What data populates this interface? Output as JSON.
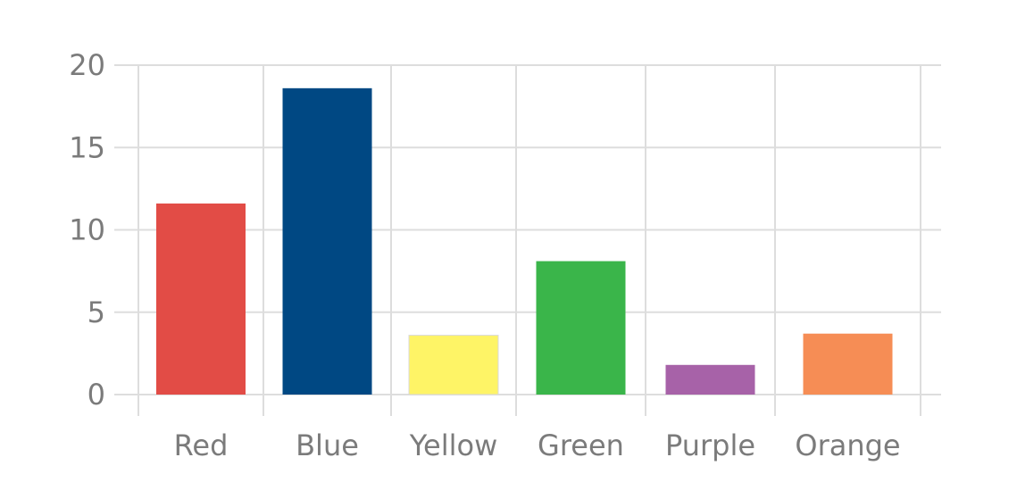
{
  "chart_data": {
    "type": "bar",
    "title": "",
    "xlabel": "",
    "ylabel": "",
    "categories": [
      "Red",
      "Blue",
      "Yellow",
      "Green",
      "Purple",
      "Orange"
    ],
    "values": [
      11.6,
      18.6,
      3.6,
      8.1,
      1.8,
      3.7
    ],
    "colors": [
      "#e24c46",
      "#004883",
      "#fef466",
      "#3ab54a",
      "#a762a8",
      "#f68d55"
    ],
    "yticks": [
      "0",
      "5",
      "10",
      "15",
      "20"
    ],
    "ylim": [
      0,
      20
    ],
    "grid": true,
    "legend": "none"
  },
  "style": {
    "grid_color": "#dddddd",
    "tick_color": "#7b7b7b"
  }
}
